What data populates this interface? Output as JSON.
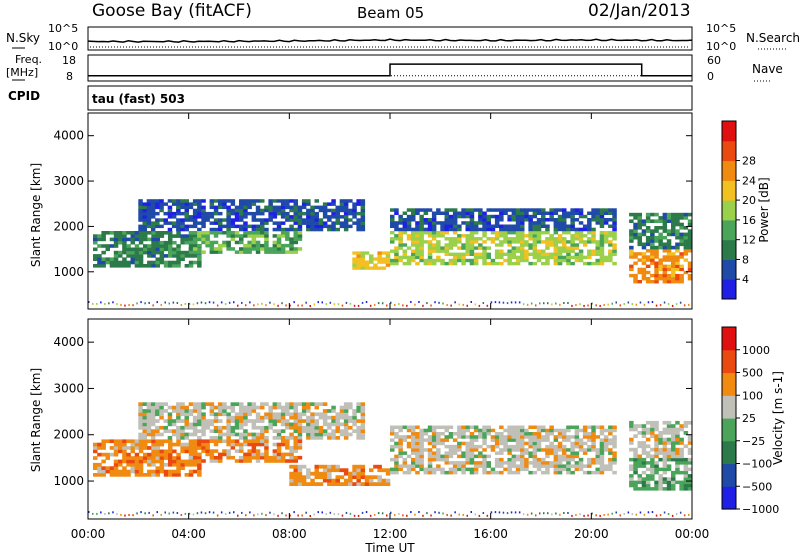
{
  "header": {
    "station": "Goose Bay (fitACF)",
    "beam": "Beam 05",
    "date": "02/Jan/2013"
  },
  "noise_panel": {
    "left_label": "N.Sky",
    "right_label": "N.Search",
    "left_ticks": [
      "10^5",
      "10^0"
    ],
    "right_ticks": [
      "10^5",
      "10^0"
    ]
  },
  "freq_panel": {
    "left_label_1": "Freq.",
    "left_label_2": "[MHz]",
    "right_label": "Nave",
    "left_ticks": [
      "18",
      "8"
    ],
    "right_ticks": [
      "60",
      "0"
    ]
  },
  "cpid": {
    "label": "CPID",
    "value": "tau (fast) 503"
  },
  "colors": {
    "power_scale": [
      "#1f1fe6",
      "#1f4aa8",
      "#2c7a4a",
      "#4aa55a",
      "#9ad04a",
      "#f2c020",
      "#f08a10",
      "#ea4a10",
      "#e01010"
    ],
    "velocity_scale": [
      "#1f1fe6",
      "#1f4aa8",
      "#2c7a4a",
      "#4aa55a",
      "#c0c0b8",
      "#f08a10",
      "#ea4a10",
      "#e01010"
    ],
    "ground_scatter": "#c8c8c0"
  },
  "chart_data": [
    {
      "type": "line",
      "title": "N.Sky / N.Search",
      "x": [
        "00:00",
        "04:00",
        "08:00",
        "12:00",
        "16:00",
        "20:00",
        "00:00"
      ],
      "series": [
        {
          "name": "N.Sky",
          "values": [
            1.3,
            1.3,
            1.4,
            1.6,
            1.5,
            1.6,
            1.5
          ]
        },
        {
          "name": "N.Search",
          "values": [
            1.0,
            1.0,
            1.0,
            1.0,
            1.0,
            1.0,
            1.0
          ]
        }
      ],
      "ylim_label": [
        "10^0",
        "10^5"
      ]
    },
    {
      "type": "line",
      "title": "Freq. / Nave",
      "x_hours": [
        0,
        12,
        12,
        22,
        22,
        24
      ],
      "series": [
        {
          "name": "Freq.",
          "values": [
            10.0,
            10.0,
            14.5,
            14.5,
            10.0,
            10.0
          ]
        },
        {
          "name": "Nave",
          "values": [
            12,
            12,
            12,
            12,
            12,
            12
          ]
        }
      ],
      "ylim": [
        8,
        18
      ],
      "ylim_right": [
        0,
        60
      ]
    },
    {
      "type": "heatmap",
      "title": "Power",
      "xlabel": "",
      "ylabel": "Slant Range [km]",
      "xlim": [
        0,
        24
      ],
      "ylim": [
        180,
        4500
      ],
      "yticks": [
        "1000",
        "2000",
        "3000",
        "4000"
      ],
      "colorbar_label": "Power [dB]",
      "colorbar_ticks": [
        "4",
        "8",
        "12",
        "16",
        "20",
        "24",
        "28"
      ],
      "regions": [
        {
          "t0": 0.2,
          "t1": 4.5,
          "r0": 1100,
          "r1": 1900,
          "level": 2
        },
        {
          "t0": 2.0,
          "t1": 11.0,
          "r0": 1900,
          "r1": 2600,
          "level": 1
        },
        {
          "t0": 4.0,
          "t1": 8.5,
          "r0": 1400,
          "r1": 1900,
          "level": 3
        },
        {
          "t0": 10.5,
          "t1": 12.0,
          "r0": 1050,
          "r1": 1450,
          "level": 5
        },
        {
          "t0": 12.0,
          "t1": 21.0,
          "r0": 1150,
          "r1": 1900,
          "level": 4
        },
        {
          "t0": 12.0,
          "t1": 21.0,
          "r0": 1900,
          "r1": 2400,
          "level": 1
        },
        {
          "t0": 21.5,
          "t1": 24.0,
          "r0": 750,
          "r1": 1500,
          "level": 6
        },
        {
          "t0": 21.5,
          "t1": 24.0,
          "r0": 1500,
          "r1": 2300,
          "level": 2
        }
      ]
    },
    {
      "type": "heatmap",
      "title": "Velocity",
      "xlabel": "Time UT",
      "ylabel": "Slant Range [km]",
      "xlim": [
        0,
        24
      ],
      "ylim": [
        180,
        4500
      ],
      "yticks": [
        "1000",
        "2000",
        "3000",
        "4000"
      ],
      "xticks": [
        "00:00",
        "04:00",
        "08:00",
        "12:00",
        "16:00",
        "20:00",
        "00:00"
      ],
      "colorbar_label": "Velocity [m s-1]",
      "colorbar_ticks": [
        "1000",
        "500",
        "100",
        "25",
        "−25",
        "−100",
        "−500",
        "−1000"
      ],
      "regions": [
        {
          "t0": 0.2,
          "t1": 4.5,
          "r0": 1100,
          "r1": 1900,
          "level": 5
        },
        {
          "t0": 2.0,
          "t1": 11.0,
          "r0": 1900,
          "r1": 2700,
          "level": 4
        },
        {
          "t0": 4.0,
          "t1": 8.5,
          "r0": 1400,
          "r1": 1900,
          "level": 5
        },
        {
          "t0": 8.0,
          "t1": 12.0,
          "r0": 900,
          "r1": 1350,
          "level": 5
        },
        {
          "t0": 12.0,
          "t1": 21.0,
          "r0": 1150,
          "r1": 2200,
          "level": 4
        },
        {
          "t0": 21.5,
          "t1": 24.0,
          "r0": 800,
          "r1": 1500,
          "level": 3
        },
        {
          "t0": 21.5,
          "t1": 24.0,
          "r0": 1500,
          "r1": 2300,
          "level": 4
        }
      ]
    }
  ]
}
